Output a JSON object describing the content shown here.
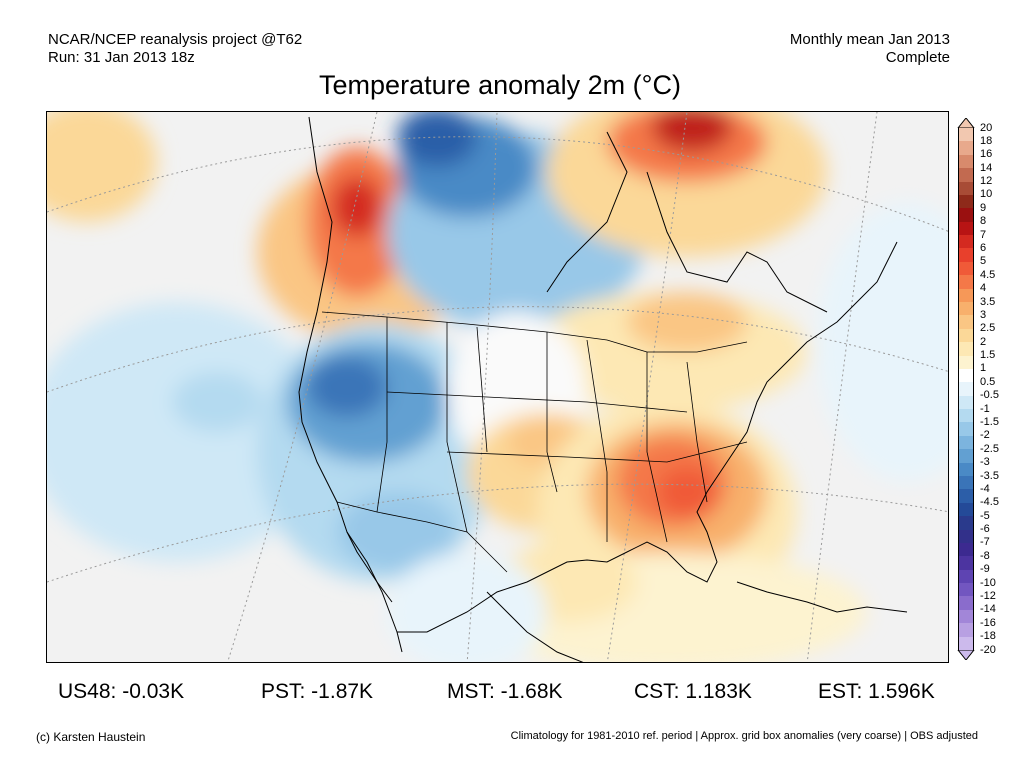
{
  "header": {
    "line1_left": "NCAR/NCEP reanalysis project @T62",
    "line2_left": "Run: 31 Jan 2013 18z",
    "line1_right": "Monthly mean Jan 2013",
    "line2_right": "Complete"
  },
  "title": "Temperature anomaly 2m (°C)",
  "colorbar": {
    "labels": [
      "20",
      "18",
      "16",
      "14",
      "12",
      "10",
      "9",
      "8",
      "7",
      "6",
      "5",
      "4.5",
      "4",
      "3.5",
      "3",
      "2.5",
      "2",
      "1.5",
      "1",
      "0.5",
      "-0.5",
      "-1",
      "-1.5",
      "-2",
      "-2.5",
      "-3",
      "-3.5",
      "-4",
      "-4.5",
      "-5",
      "-6",
      "-7",
      "-8",
      "-9",
      "-10",
      "-12",
      "-14",
      "-16",
      "-18",
      "-20"
    ],
    "colors": [
      "#f2c8b0",
      "#e8a98c",
      "#d88a6c",
      "#c26a50",
      "#a84c36",
      "#8e2a1a",
      "#9a1010",
      "#b81414",
      "#d42a20",
      "#e8402c",
      "#f05a38",
      "#f47848",
      "#f69858",
      "#f8b06c",
      "#fac684",
      "#fbd898",
      "#fde8b4",
      "#fdf3d0",
      "#ffffff",
      "#e8f4fb",
      "#cfe8f6",
      "#b4daf0",
      "#98c8e8",
      "#7cb4de",
      "#62a0d2",
      "#4a8ac6",
      "#3a74b8",
      "#2c5ea8",
      "#244a98",
      "#2a3a8c",
      "#32308a",
      "#3c2a90",
      "#4c34a0",
      "#5e44b2",
      "#7256c0",
      "#8a6ccc",
      "#a286d8",
      "#b8a0e2",
      "#ccbaec"
    ]
  },
  "stats": [
    {
      "label": "US48: -0.03K"
    },
    {
      "label": "PST: -1.87K"
    },
    {
      "label": "MST: -1.68K"
    },
    {
      "label": "CST: 1.183K"
    },
    {
      "label": "EST: 1.596K"
    }
  ],
  "footer": {
    "credit": "(c) Karsten Haustein",
    "note": "Climatology for 1981-2010 ref. period | Approx. grid box anomalies (very coarse) | OBS adjusted"
  }
}
